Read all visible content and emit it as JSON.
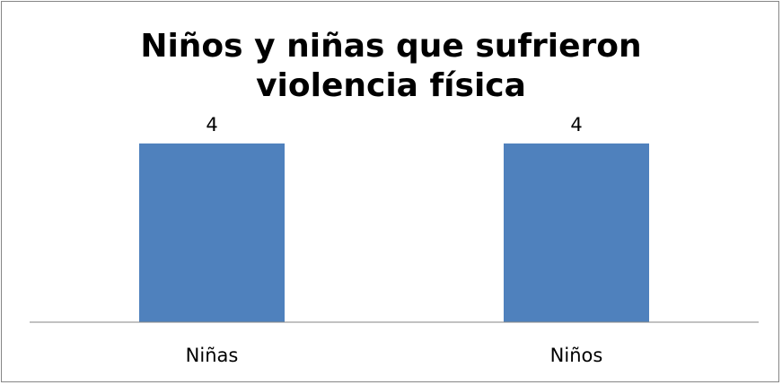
{
  "chart_data": {
    "type": "bar",
    "title": "Niños y niñas que sufrieron violencia física",
    "categories": [
      "Niñas",
      "Niños"
    ],
    "values": [
      4,
      4
    ],
    "data_labels": [
      "4",
      "4"
    ],
    "ylim": [
      0,
      4.8
    ],
    "grid": false,
    "legend": "none",
    "colors": {
      "bar": "#4f81bd",
      "axis": "#868686",
      "frame": "#868686"
    }
  }
}
